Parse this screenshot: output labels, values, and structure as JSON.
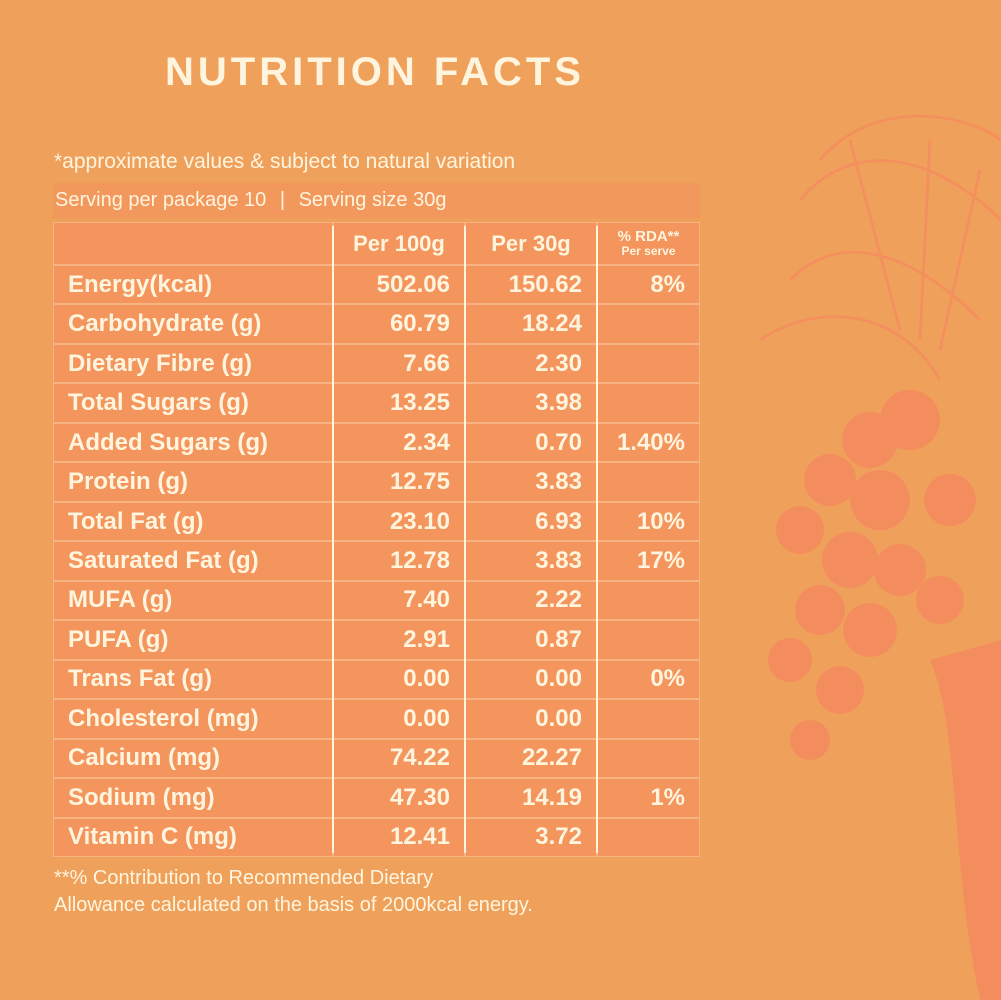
{
  "title": "NUTRITION FACTS",
  "note": "*approximate values & subject to natural variation",
  "serving": {
    "per_package": "Serving per package 10",
    "separator": "|",
    "size": "Serving size 30g"
  },
  "table": {
    "header": {
      "per_100g": "Per 100g",
      "per_30g": "Per 30g",
      "rda": "% RDA**",
      "rda_sub": "Per serve"
    },
    "rows": [
      [
        "Energy(kcal)",
        "502.06",
        "150.62",
        "8%"
      ],
      [
        "Carbohydrate (g)",
        "60.79",
        "18.24",
        null
      ],
      [
        "Dietary Fibre (g)",
        "7.66",
        "2.30",
        null
      ],
      [
        "Total Sugars (g)",
        "13.25",
        "3.98",
        null
      ],
      [
        "Added Sugars (g)",
        "2.34",
        "0.70",
        "1.40%"
      ],
      [
        "Protein (g)",
        "12.75",
        "3.83",
        null
      ],
      [
        "Total Fat (g)",
        "23.10",
        "6.93",
        "10%"
      ],
      [
        "Saturated Fat (g)",
        "12.78",
        "3.83",
        "17%"
      ],
      [
        "MUFA (g)",
        "7.40",
        "2.22",
        null
      ],
      [
        "PUFA (g)",
        "2.91",
        "0.87",
        null
      ],
      [
        "Trans Fat (g)",
        "0.00",
        "0.00",
        "0%"
      ],
      [
        "Cholesterol (mg)",
        "0.00",
        "0.00",
        null
      ],
      [
        "Calcium (mg)",
        "74.22",
        "22.27",
        null
      ],
      [
        "Sodium (mg)",
        "47.30",
        "14.19",
        "1%"
      ],
      [
        "Vitamin C (mg)",
        "12.41",
        "3.72",
        null
      ]
    ]
  },
  "footer": {
    "line1": "**% Contribution to Recommended Dietary",
    "line2": "Allowance calculated on the basis of 2000kcal energy."
  }
}
